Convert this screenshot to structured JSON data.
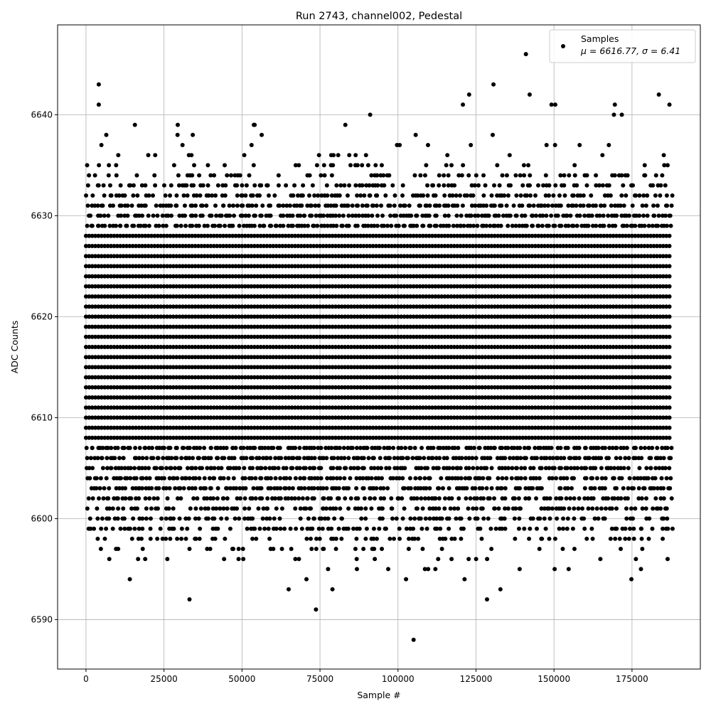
{
  "chart_data": {
    "type": "scatter",
    "title": "Run 2743, channel002, Pedestal",
    "xlabel": "Sample #",
    "ylabel": "ADC Counts",
    "xlim": [
      -9100,
      196900
    ],
    "ylim": [
      6585.1,
      6648.9
    ],
    "x_data_range": [
      0,
      187500
    ],
    "xticks": [
      0,
      25000,
      50000,
      75000,
      100000,
      125000,
      150000,
      175000
    ],
    "xtick_labels": [
      "0",
      "25000",
      "50000",
      "75000",
      "100000",
      "125000",
      "150000",
      "175000"
    ],
    "yticks": [
      6590,
      6600,
      6610,
      6620,
      6630,
      6640
    ],
    "ytick_labels": [
      "6590",
      "6600",
      "6610",
      "6620",
      "6630",
      "6640"
    ],
    "grid": true,
    "legend": {
      "placement": "top-right",
      "entries": [
        "Samples",
        "μ = 6616.77, σ = 6.41"
      ]
    },
    "series": [
      {
        "name": "Samples",
        "color": "#000000",
        "marker": "circle",
        "level_occupancy": [
          [
            6591,
            0.008
          ],
          [
            6592,
            0.012
          ],
          [
            6593,
            0.02
          ],
          [
            6594,
            0.03
          ],
          [
            6595,
            0.05
          ],
          [
            6596,
            0.12
          ],
          [
            6597,
            0.2
          ],
          [
            6598,
            0.3
          ],
          [
            6599,
            0.45
          ],
          [
            6600,
            0.55
          ],
          [
            6601,
            0.65
          ],
          [
            6602,
            0.7
          ],
          [
            6603,
            0.75
          ],
          [
            6604,
            0.8
          ],
          [
            6605,
            0.85
          ],
          [
            6606,
            0.9
          ],
          [
            6607,
            0.95
          ],
          [
            6608,
            1
          ],
          [
            6609,
            1
          ],
          [
            6610,
            1
          ],
          [
            6611,
            1
          ],
          [
            6612,
            1
          ],
          [
            6613,
            1
          ],
          [
            6614,
            1
          ],
          [
            6615,
            1
          ],
          [
            6616,
            1
          ],
          [
            6617,
            1
          ],
          [
            6618,
            1
          ],
          [
            6619,
            1
          ],
          [
            6620,
            1
          ],
          [
            6621,
            1
          ],
          [
            6622,
            1
          ],
          [
            6623,
            1
          ],
          [
            6624,
            1
          ],
          [
            6625,
            1
          ],
          [
            6626,
            1
          ],
          [
            6627,
            1
          ],
          [
            6628,
            1
          ],
          [
            6629,
            0.97
          ],
          [
            6630,
            0.9
          ],
          [
            6631,
            0.8
          ],
          [
            6632,
            0.65
          ],
          [
            6633,
            0.5
          ],
          [
            6634,
            0.3
          ],
          [
            6635,
            0.2
          ],
          [
            6636,
            0.1
          ],
          [
            6637,
            0.06
          ],
          [
            6638,
            0.03
          ],
          [
            6639,
            0.03
          ],
          [
            6640,
            0.012
          ]
        ],
        "outliers": [
          [
            4100,
            6643
          ],
          [
            130600,
            6643
          ],
          [
            141000,
            6646
          ],
          [
            122800,
            6642
          ],
          [
            142200,
            6642
          ],
          [
            183600,
            6642
          ],
          [
            4100,
            6641
          ],
          [
            120800,
            6641
          ],
          [
            149200,
            6641
          ],
          [
            150400,
            6641
          ],
          [
            169500,
            6641
          ],
          [
            187000,
            6641
          ],
          [
            105000,
            6588
          ]
        ]
      }
    ]
  }
}
